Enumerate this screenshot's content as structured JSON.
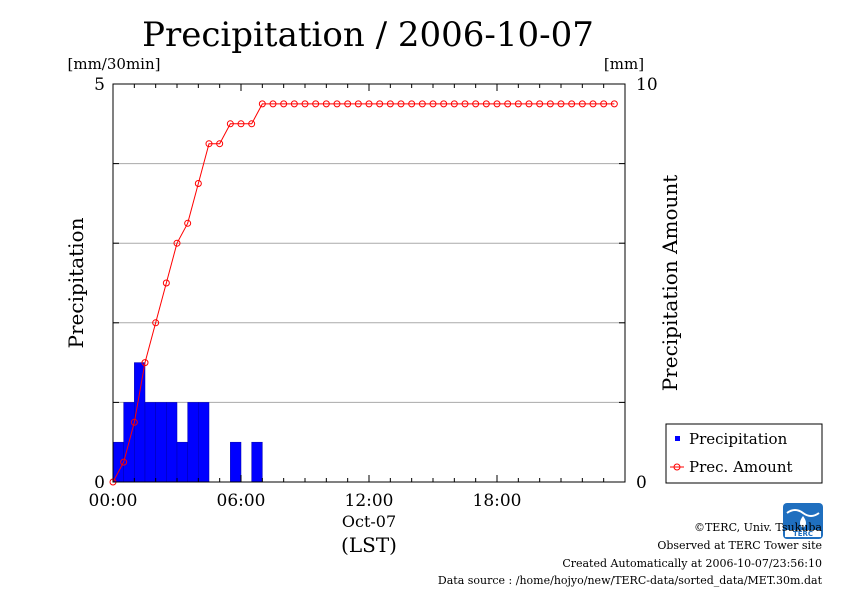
{
  "chart_data": {
    "type": "bar",
    "title": "Precipitation / 2006-10-07",
    "ylabel": "Precipitation",
    "y2label": "Precipitation Amount",
    "yunit": "[mm/30min]",
    "y2unit": "[mm]",
    "ylim": [
      0,
      5
    ],
    "y2lim": [
      0,
      10
    ],
    "yticks": [
      0,
      5
    ],
    "y2ticks": [
      0,
      10
    ],
    "xlim": [
      0,
      24
    ],
    "xticks": [
      {
        "value": 0,
        "label": "00:00"
      },
      {
        "value": 6,
        "label": "06:00"
      },
      {
        "value": 12,
        "label": "12:00"
      },
      {
        "value": 18,
        "label": "18:00"
      }
    ],
    "date_label": "Oct-07",
    "tz_label": "(LST)",
    "grid": true,
    "legend_position": "right, below plot",
    "legend": [
      "Precipitation",
      "Prec. Amount"
    ],
    "colors": {
      "precipitation": "#0000ff",
      "amount": "#ff0000",
      "grid": "#aaaaaa"
    },
    "series": [
      {
        "name": "Precipitation",
        "interval_hours": 0.5,
        "values": [
          0.5,
          1.0,
          1.5,
          1.0,
          1.0,
          1.0,
          0.5,
          1.0,
          1.0,
          0.0,
          0.0,
          0.5,
          0.0,
          0.5,
          0.0,
          0,
          0,
          0,
          0,
          0,
          0,
          0,
          0,
          0,
          0,
          0,
          0,
          0,
          0,
          0,
          0,
          0,
          0,
          0,
          0,
          0,
          0,
          0,
          0,
          0,
          0,
          0,
          0,
          0,
          0,
          0,
          0,
          0
        ]
      },
      {
        "name": "Prec. Amount",
        "x": [
          0,
          0.5,
          1,
          1.5,
          2,
          2.5,
          3,
          3.5,
          4,
          4.5,
          5,
          5.5,
          6,
          6.5,
          7,
          7.5,
          8,
          8.5,
          9,
          9.5,
          10,
          10.5,
          11,
          11.5,
          12,
          12.5,
          13,
          13.5,
          14,
          14.5,
          15,
          15.5,
          16,
          16.5,
          17,
          17.5,
          18,
          18.5,
          19,
          19.5,
          20,
          20.5,
          21,
          21.5,
          22,
          22.5,
          23,
          23.5
        ],
        "values": [
          0,
          0.5,
          1.5,
          3.0,
          4.0,
          5.0,
          6.0,
          6.5,
          7.5,
          8.5,
          8.5,
          9.0,
          9.0,
          9.0,
          9.5,
          9.5,
          9.5,
          9.5,
          9.5,
          9.5,
          9.5,
          9.5,
          9.5,
          9.5,
          9.5,
          9.5,
          9.5,
          9.5,
          9.5,
          9.5,
          9.5,
          9.5,
          9.5,
          9.5,
          9.5,
          9.5,
          9.5,
          9.5,
          9.5,
          9.5,
          9.5,
          9.5,
          9.5,
          9.5,
          9.5,
          9.5,
          9.5,
          9.5
        ]
      }
    ]
  },
  "footer": {
    "copyright": "©TERC, Univ. Tsukuba",
    "observed": "Observed at TERC Tower site",
    "created": "Created Automatically at 2006-10-07/23:56:10",
    "source": "Data source : /home/hojyo/new/TERC-data/sorted_data/MET.30m.dat",
    "logo_text": "TERC"
  }
}
